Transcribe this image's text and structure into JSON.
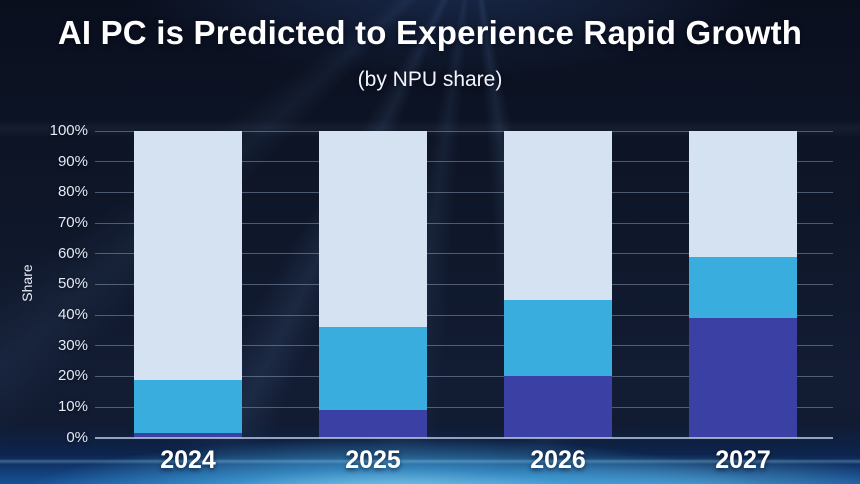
{
  "header": {
    "title": "AI PC is Predicted to Experience Rapid Growth",
    "subtitle": "(by NPU share)"
  },
  "chart_data": {
    "type": "bar",
    "stacked": true,
    "title": "AI PC is Predicted to Experience Rapid Growth",
    "subtitle": "(by NPU share)",
    "categories": [
      "2024",
      "2025",
      "2026",
      "2027"
    ],
    "series": [
      {
        "name": "bottom-segment-dark-indigo",
        "color": "#3a40a4",
        "values": [
          1.5,
          9,
          20,
          39
        ]
      },
      {
        "name": "middle-segment-blue",
        "color": "#39aede",
        "values": [
          17.5,
          27,
          25,
          20
        ]
      },
      {
        "name": "top-segment-light-blue",
        "color": "#d4e2f1",
        "values": [
          81,
          64,
          55,
          41
        ]
      }
    ],
    "xlabel": "",
    "ylabel": "Share",
    "ylim": [
      0,
      100
    ],
    "ytick_step": 10,
    "ytick_labels": [
      "0%",
      "10%",
      "20%",
      "30%",
      "40%",
      "50%",
      "60%",
      "70%",
      "80%",
      "90%",
      "100%"
    ],
    "grid": true,
    "legend": "none"
  },
  "colors": {
    "background_top": "#0a0f1e",
    "background_mid": "#121c33",
    "bottom_glow": "#52c2f0",
    "gridline": "#a5b9d7",
    "text": "#ffffff"
  }
}
